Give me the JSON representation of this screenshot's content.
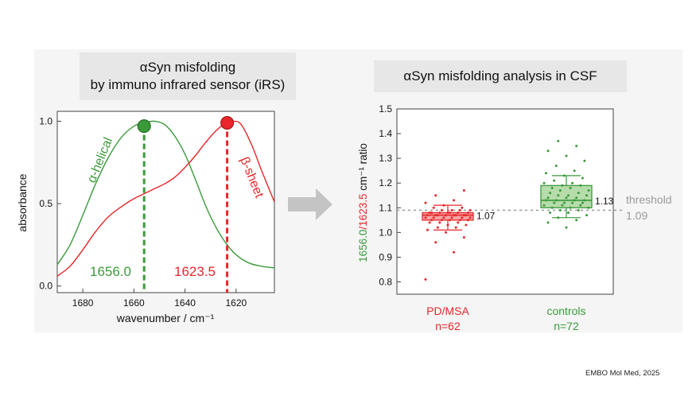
{
  "panel_left": {
    "title_line1": "αSyn misfolding",
    "title_line2": "by immuno infrared sensor (iRS)"
  },
  "panel_right": {
    "title": "αSyn misfolding analysis in CSF"
  },
  "credit": "EMBO Mol Med, 2025",
  "colors": {
    "green": "#3a9a3a",
    "red": "#e8262a",
    "green_box": "#b6dcab",
    "red_box": "#f6a7a4",
    "threshold": "#9a9a9a",
    "arrow": "#c4c4c4"
  },
  "chart_data": [
    {
      "type": "line",
      "xlabel": "wavenumber / cm⁻¹",
      "ylabel": "absorbance",
      "xlim": [
        1690,
        1605
      ],
      "ylim": [
        -0.04,
        1.06
      ],
      "x_ticks": [
        1680,
        1660,
        1640,
        1620
      ],
      "y_ticks": [
        0.0,
        0.5,
        1.0
      ],
      "x_tick_labels": [
        "1680",
        "1660",
        "1640",
        "1620"
      ],
      "y_tick_labels": [
        "0.0",
        "0.5",
        "1.0"
      ],
      "series": [
        {
          "name": "α-helical",
          "color": "#3a9a3a",
          "x": [
            1690,
            1685,
            1680,
            1675,
            1670,
            1665,
            1660,
            1656,
            1652,
            1648,
            1644,
            1640,
            1636,
            1632,
            1628,
            1624,
            1620,
            1615,
            1610,
            1605
          ],
          "y": [
            0.13,
            0.25,
            0.43,
            0.62,
            0.78,
            0.9,
            0.97,
            0.99,
            1.0,
            0.98,
            0.91,
            0.8,
            0.65,
            0.49,
            0.36,
            0.26,
            0.19,
            0.14,
            0.12,
            0.11
          ]
        },
        {
          "name": "β-sheet",
          "color": "#e8262a",
          "x": [
            1690,
            1685,
            1680,
            1675,
            1670,
            1665,
            1660,
            1656,
            1652,
            1648,
            1644,
            1640,
            1636,
            1632,
            1628,
            1624,
            1621,
            1618,
            1614,
            1610,
            1605
          ],
          "y": [
            0.06,
            0.12,
            0.22,
            0.33,
            0.42,
            0.48,
            0.53,
            0.56,
            0.59,
            0.62,
            0.66,
            0.72,
            0.79,
            0.87,
            0.94,
            0.99,
            1.0,
            0.98,
            0.86,
            0.7,
            0.51
          ]
        }
      ],
      "markers": [
        {
          "label": "1656.0",
          "x": 1656.0,
          "y": 0.97,
          "color": "#3a9a3a"
        },
        {
          "label": "1623.5",
          "x": 1623.5,
          "y": 0.99,
          "color": "#e8262a"
        }
      ],
      "series_labels": [
        "α-helical",
        "β-sheet"
      ]
    },
    {
      "type": "box",
      "ylabel_green": "1656.0",
      "ylabel_red": "/1623.5",
      "ylabel_rest": " cm⁻¹ ratio",
      "ylim": [
        0.75,
        1.5
      ],
      "y_ticks": [
        0.8,
        0.9,
        1.0,
        1.1,
        1.2,
        1.3,
        1.4,
        1.5
      ],
      "y_tick_labels": [
        "0.8",
        "0.9",
        "1.0",
        "1.1",
        "1.2",
        "1.3",
        "1.4",
        "1.5"
      ],
      "threshold": 1.09,
      "threshold_label": "threshold",
      "threshold_value_label": "1.09",
      "groups": [
        {
          "name": "PD/MSA",
          "n_label": "n=62",
          "color": "#e8262a",
          "fill": "#f6a7a4",
          "median": 1.07,
          "median_label": "1.07",
          "q1": 1.05,
          "q3": 1.08,
          "whisker_low": 1.01,
          "whisker_high": 1.11,
          "points": [
            0.81,
            0.92,
            0.96,
            0.98,
            1.0,
            1.01,
            1.02,
            1.02,
            1.03,
            1.03,
            1.04,
            1.04,
            1.04,
            1.05,
            1.05,
            1.05,
            1.05,
            1.05,
            1.06,
            1.06,
            1.06,
            1.06,
            1.06,
            1.06,
            1.07,
            1.07,
            1.07,
            1.07,
            1.07,
            1.07,
            1.07,
            1.07,
            1.08,
            1.08,
            1.08,
            1.08,
            1.08,
            1.08,
            1.08,
            1.09,
            1.09,
            1.09,
            1.09,
            1.1,
            1.1,
            1.11,
            1.12,
            1.13,
            1.15,
            1.17
          ]
        },
        {
          "name": "controls",
          "n_label": "n=72",
          "color": "#3a9a3a",
          "fill": "#b6dcab",
          "median": 1.13,
          "median_label": "1.13",
          "q1": 1.1,
          "q3": 1.19,
          "whisker_low": 1.06,
          "whisker_high": 1.23,
          "points": [
            1.02,
            1.04,
            1.05,
            1.06,
            1.07,
            1.08,
            1.08,
            1.09,
            1.09,
            1.1,
            1.1,
            1.1,
            1.11,
            1.11,
            1.11,
            1.12,
            1.12,
            1.12,
            1.12,
            1.13,
            1.13,
            1.13,
            1.13,
            1.14,
            1.14,
            1.14,
            1.15,
            1.15,
            1.15,
            1.16,
            1.16,
            1.17,
            1.17,
            1.18,
            1.18,
            1.19,
            1.19,
            1.2,
            1.2,
            1.21,
            1.22,
            1.23,
            1.24,
            1.25,
            1.27,
            1.29,
            1.31,
            1.33,
            1.35,
            1.37
          ]
        }
      ]
    }
  ]
}
